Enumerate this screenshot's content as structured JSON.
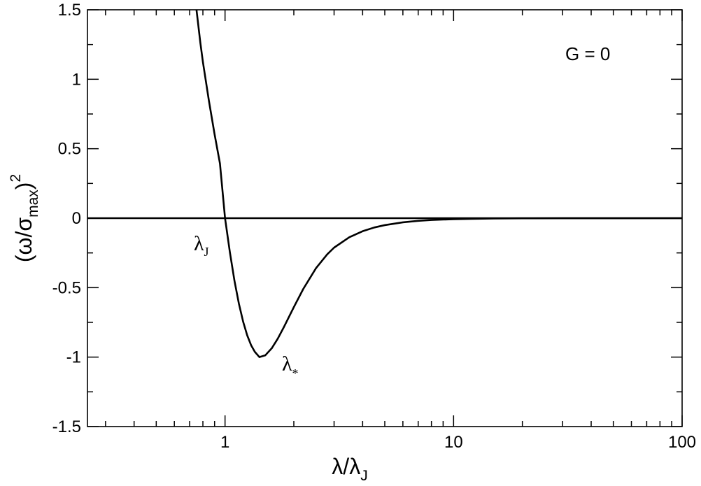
{
  "chart_data": {
    "type": "line",
    "xscale": "log",
    "xlim": [
      0.25,
      100
    ],
    "ylim": [
      -1.5,
      1.5
    ],
    "x_ticks": [
      1,
      10,
      100
    ],
    "x_tick_labels": [
      "1",
      "10",
      "100"
    ],
    "y_ticks": [
      -1.5,
      -1,
      -0.5,
      0,
      0.5,
      1,
      1.5
    ],
    "y_tick_labels": [
      "-1.5",
      "-1",
      "-0.5",
      "0",
      "0.5",
      "1",
      "1.5"
    ],
    "xlabel": {
      "main": "λ/λ",
      "sub": "J"
    },
    "ylabel": {
      "prefix": "(ω/σ",
      "sub": "max",
      "suffix": ")",
      "sup": "2"
    },
    "grid": false,
    "annotations": [
      {
        "id": "lambda-j",
        "main": "λ",
        "sub": "J"
      },
      {
        "id": "lambda-star",
        "main": "λ",
        "sub": "*"
      },
      {
        "id": "g-label",
        "text": "G = 0"
      }
    ],
    "series": [
      {
        "x": [
          0.75,
          0.78,
          0.8,
          0.85,
          0.9,
          0.95,
          1.0,
          1.05,
          1.1,
          1.15,
          1.2,
          1.25,
          1.3,
          1.35,
          1.414,
          1.5,
          1.6,
          1.7,
          1.8,
          2.0,
          2.2,
          2.5,
          2.8,
          3.0,
          3.5,
          4.0,
          4.5,
          5.0,
          6.0,
          7.0,
          8.0,
          10.0,
          12.0,
          15.0,
          20.0,
          30.0,
          50.0,
          100.0
        ],
        "y": [
          1.5,
          1.261,
          1.125,
          0.845,
          0.604,
          0.394,
          0.0,
          -0.245,
          -0.452,
          -0.616,
          -0.745,
          -0.843,
          -0.914,
          -0.962,
          -1.0,
          -0.987,
          -0.937,
          -0.868,
          -0.791,
          -0.64,
          -0.509,
          -0.36,
          -0.26,
          -0.212,
          -0.137,
          -0.094,
          -0.067,
          -0.05,
          -0.03,
          -0.019,
          -0.013,
          -0.007,
          -0.0046,
          -0.0024,
          -0.001,
          -0.0003,
          -0.0001,
          0.0
        ]
      },
      {
        "x": [
          0.25,
          100
        ],
        "y": [
          0,
          0
        ]
      }
    ]
  }
}
